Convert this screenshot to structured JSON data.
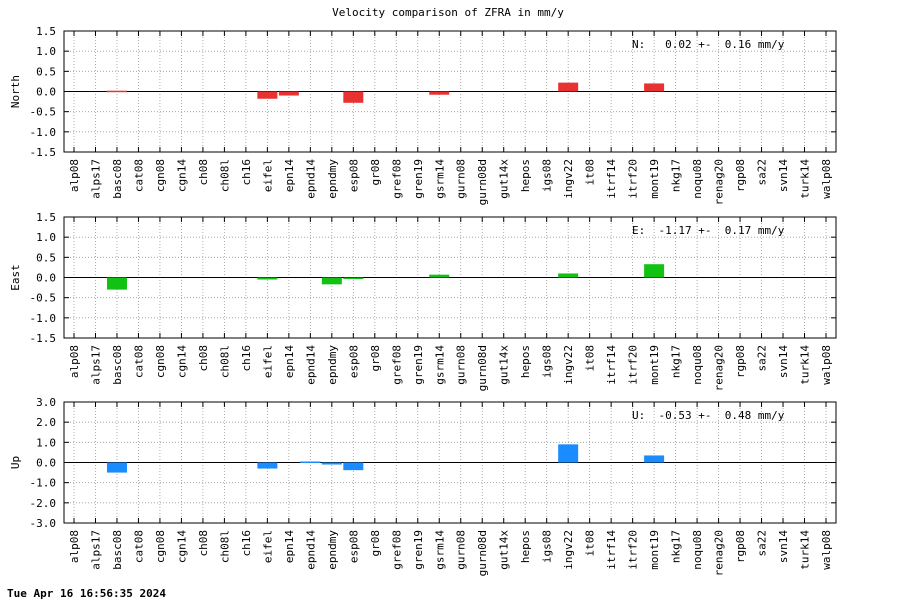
{
  "page": {
    "timestamp": "Tue Apr 16 16:56:35 2024"
  },
  "chart_data": {
    "type": "bar",
    "title": "Velocity comparison of ZFRA in mm/y",
    "grid": true,
    "categories": [
      "alp08",
      "alps17",
      "basc08",
      "cat08",
      "cgn08",
      "cgn14",
      "ch08",
      "ch08l",
      "ch16",
      "eifel",
      "epn14",
      "epnd14",
      "epndmy",
      "esp08",
      "gr08",
      "gref08",
      "gren19",
      "gsrm14",
      "gurn08",
      "gurn08d",
      "gut14x",
      "hepos",
      "igs08",
      "ingv22",
      "it08",
      "itrf14",
      "itrf20",
      "mont19",
      "nkg17",
      "noqu08",
      "renag20",
      "rgp08",
      "sa22",
      "svn14",
      "turk14",
      "walp08"
    ],
    "panels": [
      {
        "id": "north",
        "ylabel": "North",
        "ylim": [
          -1.5,
          1.5
        ],
        "yticks": [
          -1.5,
          -1.0,
          -0.5,
          0.0,
          0.5,
          1.0,
          1.5
        ],
        "ytick_labels": [
          "-1.5",
          "-1.0",
          "-0.5",
          "0.0",
          "0.5",
          "1.0",
          "1.5"
        ],
        "color": "#e83232",
        "annotation": "N:   0.02 +-  0.16 mm/y",
        "values": [
          0,
          0,
          0.02,
          0,
          0,
          0,
          0,
          0,
          0,
          -0.18,
          -0.1,
          0,
          0,
          -0.28,
          0,
          0,
          0,
          -0.08,
          0,
          0,
          0,
          0,
          0,
          0.22,
          0,
          0,
          0,
          0.2,
          0,
          0,
          0,
          0,
          0,
          0,
          0,
          0
        ]
      },
      {
        "id": "east",
        "ylabel": "East",
        "ylim": [
          -1.5,
          1.5
        ],
        "yticks": [
          -1.5,
          -1.0,
          -0.5,
          0.0,
          0.5,
          1.0,
          1.5
        ],
        "ytick_labels": [
          "-1.5",
          "-1.0",
          "-0.5",
          "0.0",
          "0.5",
          "1.0",
          "1.5"
        ],
        "color": "#12c212",
        "annotation": "E:  -1.17 +-  0.17 mm/y",
        "values": [
          0,
          0,
          -0.3,
          0,
          0,
          0,
          0,
          0,
          0,
          -0.05,
          0,
          0,
          -0.17,
          -0.03,
          0,
          0,
          0,
          0.07,
          0,
          0,
          0,
          0,
          0,
          0.1,
          0,
          0,
          0,
          0.33,
          0,
          0,
          0,
          0,
          0,
          0,
          0,
          0
        ]
      },
      {
        "id": "up",
        "ylabel": "Up",
        "ylim": [
          -3.0,
          3.0
        ],
        "yticks": [
          -3.0,
          -2.0,
          -1.0,
          0.0,
          1.0,
          2.0,
          3.0
        ],
        "ytick_labels": [
          "-3.0",
          "-2.0",
          "-1.0",
          "0.0",
          "1.0",
          "2.0",
          "3.0"
        ],
        "color": "#1a8cff",
        "annotation": "U:  -0.53 +-  0.48 mm/y",
        "values": [
          0,
          0,
          -0.5,
          0,
          0,
          0,
          0,
          0,
          0,
          -0.3,
          0,
          0.05,
          -0.1,
          -0.38,
          0,
          0,
          0,
          0,
          0,
          0,
          0,
          0,
          0,
          0.9,
          0,
          0,
          0,
          0.35,
          0,
          0,
          0,
          0,
          0,
          0,
          0,
          0
        ]
      }
    ]
  }
}
